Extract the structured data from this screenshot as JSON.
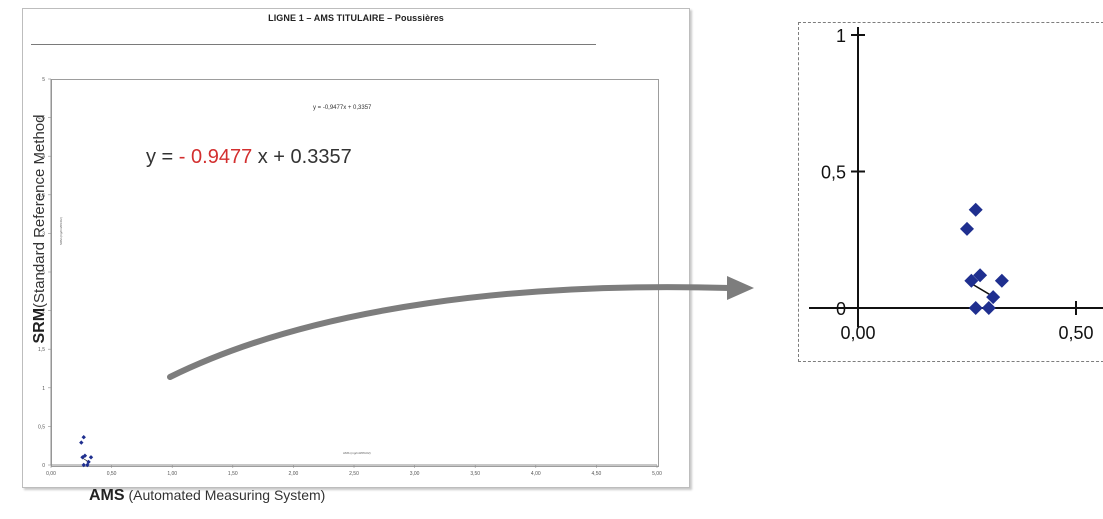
{
  "main_title": "LIGNE 1 – AMS TITULAIRE – Poussières",
  "regression_small": "y = -0,9477x + 0,3357",
  "regression_big": {
    "prefix": "y = ",
    "negative": "- 0.9477",
    "suffix": " x + 0.3357"
  },
  "y_label": {
    "bold": "SRM",
    "rest": "(Standard Reference Method"
  },
  "x_label": {
    "bold": "AMS",
    "rest": " (Automated Measuring System)"
  },
  "small_axis_labels": {
    "x": "AMS (mg/m3/0%O2)",
    "y": "SRM (mg/m3/0%O2)"
  },
  "colors": {
    "marker": "#1f2f8f",
    "regression_negative": "#d32f2f",
    "arrow": "#7d7d7d"
  },
  "chart_data": [
    {
      "type": "scatter",
      "title": "LIGNE 1 – AMS TITULAIRE – Poussières",
      "xlabel": "AMS (mg/m3/0%O2)",
      "ylabel": "SRM (mg/m3/0%O2)",
      "xlim": [
        0,
        5
      ],
      "ylim": [
        0,
        5
      ],
      "x_ticks": [
        "0,00",
        "0,50",
        "1,00",
        "1,50",
        "2,00",
        "2,50",
        "3,00",
        "3,50",
        "4,00",
        "4,50",
        "5,00"
      ],
      "y_ticks": [
        "0",
        "0,5",
        "1",
        "1,5",
        "2",
        "2,5",
        "3",
        "3,5",
        "4",
        "4,5",
        "5"
      ],
      "grid": false,
      "series": [
        {
          "marker": "diamond",
          "color": "#1f2f8f",
          "points": [
            {
              "x": 0.25,
              "y": 0.29
            },
            {
              "x": 0.27,
              "y": 0.36
            },
            {
              "x": 0.28,
              "y": 0.12
            },
            {
              "x": 0.26,
              "y": 0.1
            },
            {
              "x": 0.33,
              "y": 0.1
            },
            {
              "x": 0.27,
              "y": 0.0
            },
            {
              "x": 0.3,
              "y": 0.0
            },
            {
              "x": 0.31,
              "y": 0.04
            }
          ]
        }
      ],
      "regression_line": {
        "slope": -0.9477,
        "intercept": 0.3357
      }
    },
    {
      "type": "scatter",
      "xlim": [
        0,
        0.6
      ],
      "ylim": [
        0,
        1
      ],
      "x_ticks": [
        "0,00",
        "0,50"
      ],
      "y_ticks": [
        "0",
        "0,5",
        "1"
      ],
      "grid": false,
      "series": [
        {
          "marker": "diamond",
          "color": "#1f2f8f",
          "points": [
            {
              "x": 0.25,
              "y": 0.29
            },
            {
              "x": 0.27,
              "y": 0.36
            },
            {
              "x": 0.28,
              "y": 0.12
            },
            {
              "x": 0.26,
              "y": 0.1
            },
            {
              "x": 0.33,
              "y": 0.1
            },
            {
              "x": 0.27,
              "y": 0.0
            },
            {
              "x": 0.3,
              "y": 0.0
            },
            {
              "x": 0.31,
              "y": 0.04
            }
          ]
        }
      ],
      "regression_line": {
        "slope": -0.9477,
        "intercept": 0.3357
      }
    }
  ]
}
